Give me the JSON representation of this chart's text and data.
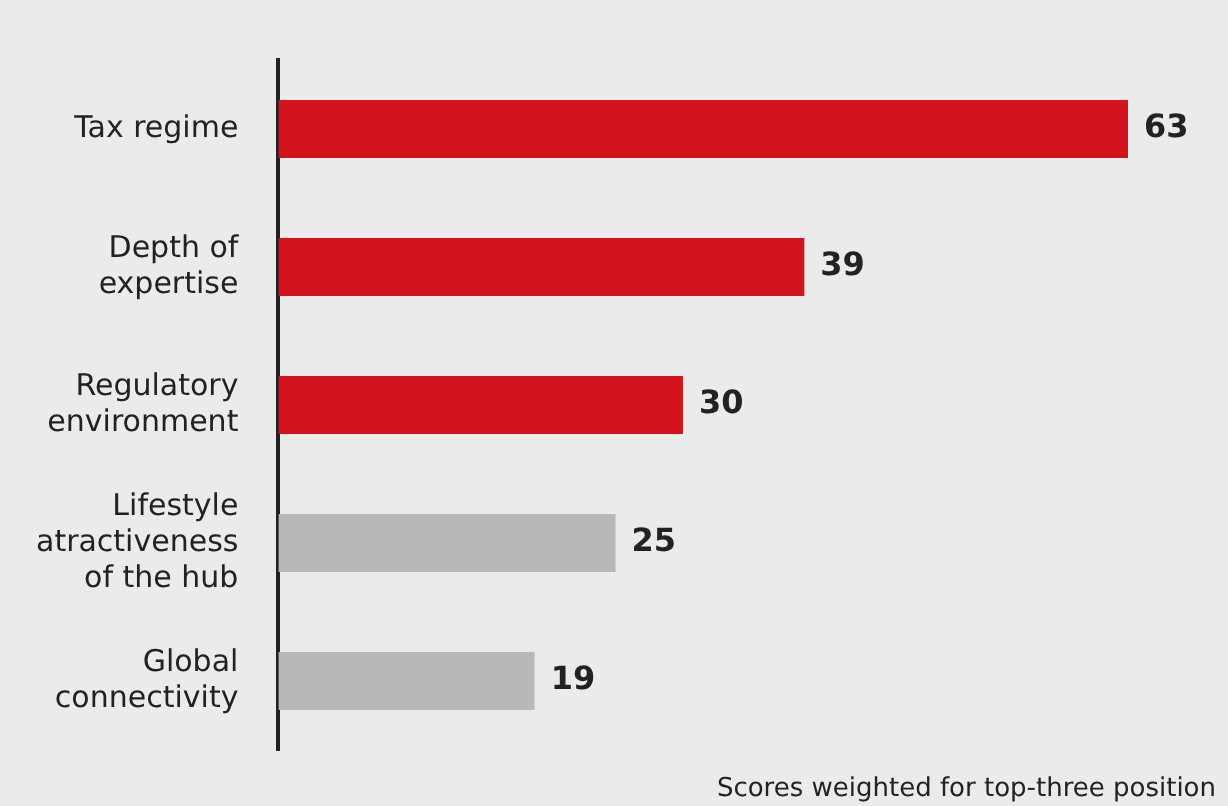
{
  "chart_data": {
    "type": "bar",
    "orientation": "horizontal",
    "categories": [
      "Tax regime",
      "Depth of expertise",
      "Regulatory environment",
      "Lifestyle atractiveness of the hub",
      "Global connectivity"
    ],
    "values": [
      63,
      39,
      30,
      25,
      19
    ],
    "colors": [
      "#d3141c",
      "#d3141c",
      "#d3141c",
      "#b8b8b8",
      "#b8b8b8"
    ],
    "data_labels": true,
    "annotations": [
      "Scores weighted for top-three position"
    ],
    "legend": false
  }
}
